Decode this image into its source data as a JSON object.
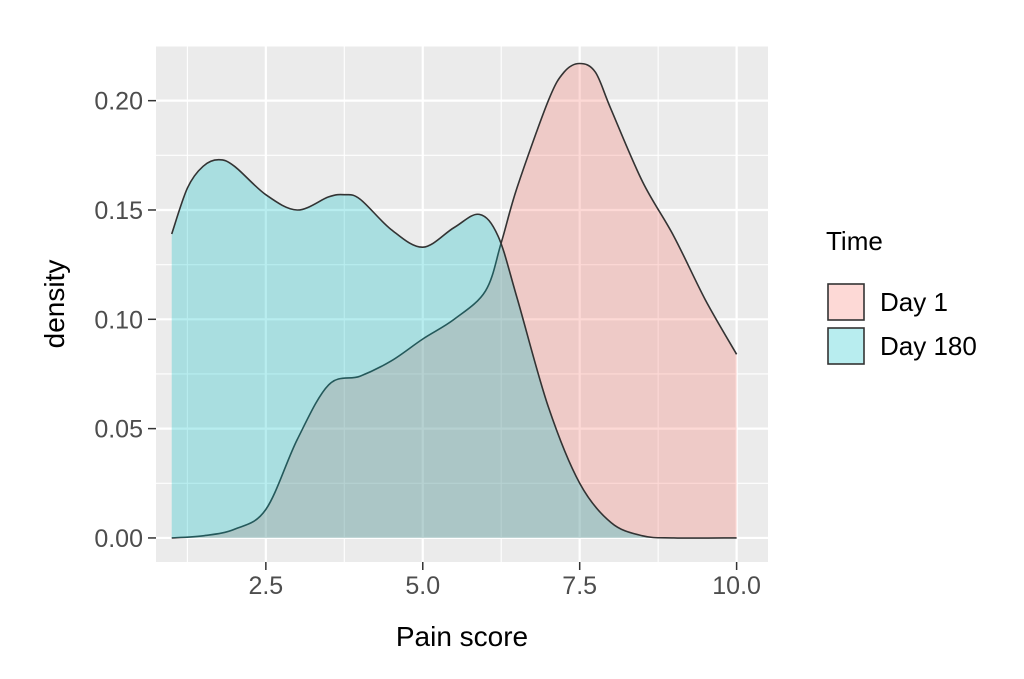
{
  "chart_data": {
    "type": "area",
    "title": "",
    "xlabel": "Pain score",
    "ylabel": "density",
    "xlim": [
      0.75,
      10.5
    ],
    "ylim": [
      -0.011,
      0.225
    ],
    "x_ticks": [
      2.5,
      5.0,
      7.5,
      10.0
    ],
    "x_tick_labels": [
      "2.5",
      "5.0",
      "7.5",
      "10.0"
    ],
    "y_ticks": [
      0.0,
      0.05,
      0.1,
      0.15,
      0.2
    ],
    "y_tick_labels": [
      "0.00",
      "0.05",
      "0.10",
      "0.15",
      "0.20"
    ],
    "grid": true,
    "legend": {
      "title": "Time",
      "placement": "right",
      "entries": [
        "Day 1",
        "Day 180"
      ]
    },
    "series": [
      {
        "name": "Day 1",
        "color": "#F8766D",
        "points": [
          [
            1.0,
            0.0
          ],
          [
            1.5,
            0.001
          ],
          [
            2.0,
            0.004
          ],
          [
            2.5,
            0.013
          ],
          [
            3.0,
            0.045
          ],
          [
            3.5,
            0.07
          ],
          [
            4.0,
            0.074
          ],
          [
            4.5,
            0.081
          ],
          [
            5.0,
            0.091
          ],
          [
            5.5,
            0.1
          ],
          [
            6.0,
            0.113
          ],
          [
            6.25,
            0.135
          ],
          [
            6.5,
            0.16
          ],
          [
            7.0,
            0.2
          ],
          [
            7.25,
            0.213
          ],
          [
            7.5,
            0.217
          ],
          [
            7.75,
            0.213
          ],
          [
            8.0,
            0.196
          ],
          [
            8.5,
            0.163
          ],
          [
            9.0,
            0.138
          ],
          [
            9.5,
            0.109
          ],
          [
            10.0,
            0.084
          ]
        ]
      },
      {
        "name": "Day 180",
        "color": "#00BFC4",
        "points": [
          [
            1.0,
            0.139
          ],
          [
            1.25,
            0.16
          ],
          [
            1.5,
            0.17
          ],
          [
            1.75,
            0.173
          ],
          [
            2.0,
            0.17
          ],
          [
            2.5,
            0.157
          ],
          [
            3.0,
            0.15
          ],
          [
            3.5,
            0.156
          ],
          [
            3.75,
            0.157
          ],
          [
            4.0,
            0.155
          ],
          [
            4.5,
            0.141
          ],
          [
            5.0,
            0.133
          ],
          [
            5.5,
            0.142
          ],
          [
            5.9,
            0.148
          ],
          [
            6.2,
            0.138
          ],
          [
            6.5,
            0.11
          ],
          [
            7.0,
            0.06
          ],
          [
            7.5,
            0.025
          ],
          [
            8.0,
            0.007
          ],
          [
            8.5,
            0.001
          ],
          [
            9.0,
            0.0
          ],
          [
            10.0,
            0.0
          ]
        ]
      }
    ]
  }
}
